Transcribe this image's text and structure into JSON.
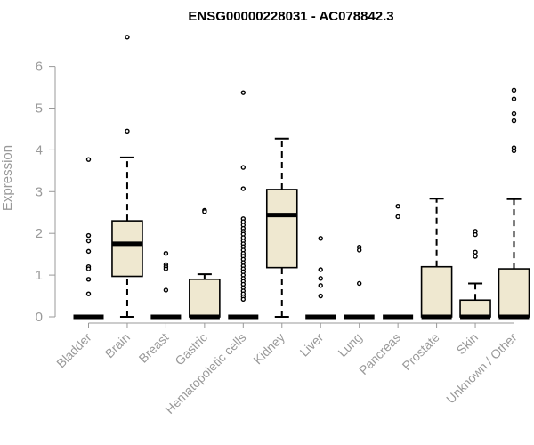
{
  "chart_data": {
    "type": "boxplot",
    "title": "ENSG00000228031 - AC078842.3",
    "ylabel": "Expression",
    "xlabel": "",
    "ylim": [
      0,
      6.8
    ],
    "yticks": [
      0,
      1,
      2,
      3,
      4,
      5,
      6
    ],
    "grid": false,
    "box_fill": "#efe8d0",
    "categories": [
      "Bladder",
      "Brain",
      "Breast",
      "Gastric",
      "Hematopoietic cells",
      "Kidney",
      "Liver",
      "Lung",
      "Pancreas",
      "Prostate",
      "Skin",
      "Unknown / Other"
    ],
    "boxes": [
      {
        "q1": 0,
        "median": 0,
        "q3": 0,
        "whisker_low": 0,
        "whisker_high": 0,
        "outliers": [
          3.77,
          1.95,
          1.82,
          1.57,
          1.2,
          1.15,
          0.9,
          0.55
        ]
      },
      {
        "q1": 0.97,
        "median": 1.75,
        "q3": 2.3,
        "whisker_low": 0,
        "whisker_high": 3.82,
        "outliers": [
          6.7,
          4.45
        ]
      },
      {
        "q1": 0,
        "median": 0,
        "q3": 0,
        "whisker_low": 0,
        "whisker_high": 0,
        "outliers": [
          1.52,
          1.25,
          1.2,
          1.15,
          0.64
        ]
      },
      {
        "q1": 0,
        "median": 0,
        "q3": 0.9,
        "whisker_low": 0,
        "whisker_high": 1.02,
        "outliers": [
          2.55,
          2.52
        ]
      },
      {
        "q1": 0,
        "median": 0,
        "q3": 0,
        "whisker_low": 0,
        "whisker_high": 0,
        "outliers": [
          5.37,
          3.58,
          3.07,
          2.35,
          2.28,
          2.2,
          2.12,
          2.05,
          1.98,
          1.9,
          1.82,
          1.75,
          1.68,
          1.6,
          1.52,
          1.45,
          1.38,
          1.3,
          1.22,
          1.15,
          1.08,
          1.0,
          0.92,
          0.85,
          0.78,
          0.7,
          0.62,
          0.55,
          0.48,
          0.42
        ]
      },
      {
        "q1": 1.18,
        "median": 2.44,
        "q3": 3.05,
        "whisker_low": 0,
        "whisker_high": 4.27,
        "outliers": []
      },
      {
        "q1": 0,
        "median": 0,
        "q3": 0,
        "whisker_low": 0,
        "whisker_high": 0,
        "outliers": [
          1.88,
          1.13,
          0.92,
          0.75,
          0.5
        ]
      },
      {
        "q1": 0,
        "median": 0,
        "q3": 0,
        "whisker_low": 0,
        "whisker_high": 0,
        "outliers": [
          1.67,
          1.6,
          0.8
        ]
      },
      {
        "q1": 0,
        "median": 0,
        "q3": 0,
        "whisker_low": 0,
        "whisker_high": 0,
        "outliers": [
          2.65,
          2.4
        ]
      },
      {
        "q1": 0,
        "median": 0,
        "q3": 1.2,
        "whisker_low": 0,
        "whisker_high": 2.83,
        "outliers": []
      },
      {
        "q1": 0,
        "median": 0,
        "q3": 0.4,
        "whisker_low": 0,
        "whisker_high": 0.8,
        "outliers": [
          2.05,
          1.97,
          1.55,
          1.45
        ]
      },
      {
        "q1": 0,
        "median": 0,
        "q3": 1.15,
        "whisker_low": 0,
        "whisker_high": 2.82,
        "outliers": [
          5.43,
          5.22,
          4.87,
          4.7,
          4.05,
          3.98
        ]
      }
    ]
  }
}
